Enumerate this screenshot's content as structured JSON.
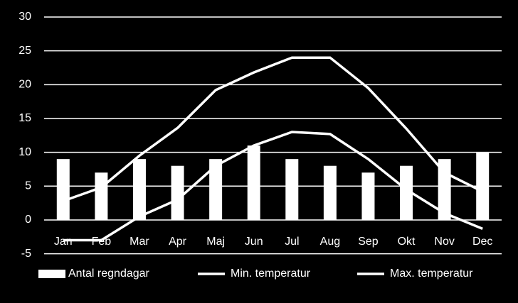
{
  "chart_data": {
    "type": "bar",
    "categories": [
      "Jan",
      "Feb",
      "Mar",
      "Apr",
      "Maj",
      "Jun",
      "Jul",
      "Aug",
      "Sep",
      "Okt",
      "Nov",
      "Dec"
    ],
    "series": [
      {
        "name": "Antal regndagar",
        "type": "bar",
        "color": "#ffffff",
        "values": [
          9,
          7,
          9,
          8,
          9,
          11,
          9,
          8,
          7,
          8,
          9,
          10
        ]
      },
      {
        "name": "Min. temperatur",
        "type": "line",
        "color": "#ffffff",
        "values": [
          -3,
          -3,
          0.5,
          3,
          8,
          11,
          13,
          12.7,
          9,
          4.5,
          1,
          -1.3
        ]
      },
      {
        "name": "Max. temperatur",
        "type": "line",
        "color": "#ffffff",
        "values": [
          2.8,
          4.8,
          9.5,
          13.6,
          19.2,
          21.8,
          24,
          24,
          19.5,
          13.5,
          7,
          4.2
        ]
      }
    ],
    "ylim": [
      -5,
      30
    ],
    "yticks": [
      -5,
      0,
      5,
      10,
      15,
      20,
      25,
      30
    ],
    "grid": true,
    "legend": "bottom"
  }
}
